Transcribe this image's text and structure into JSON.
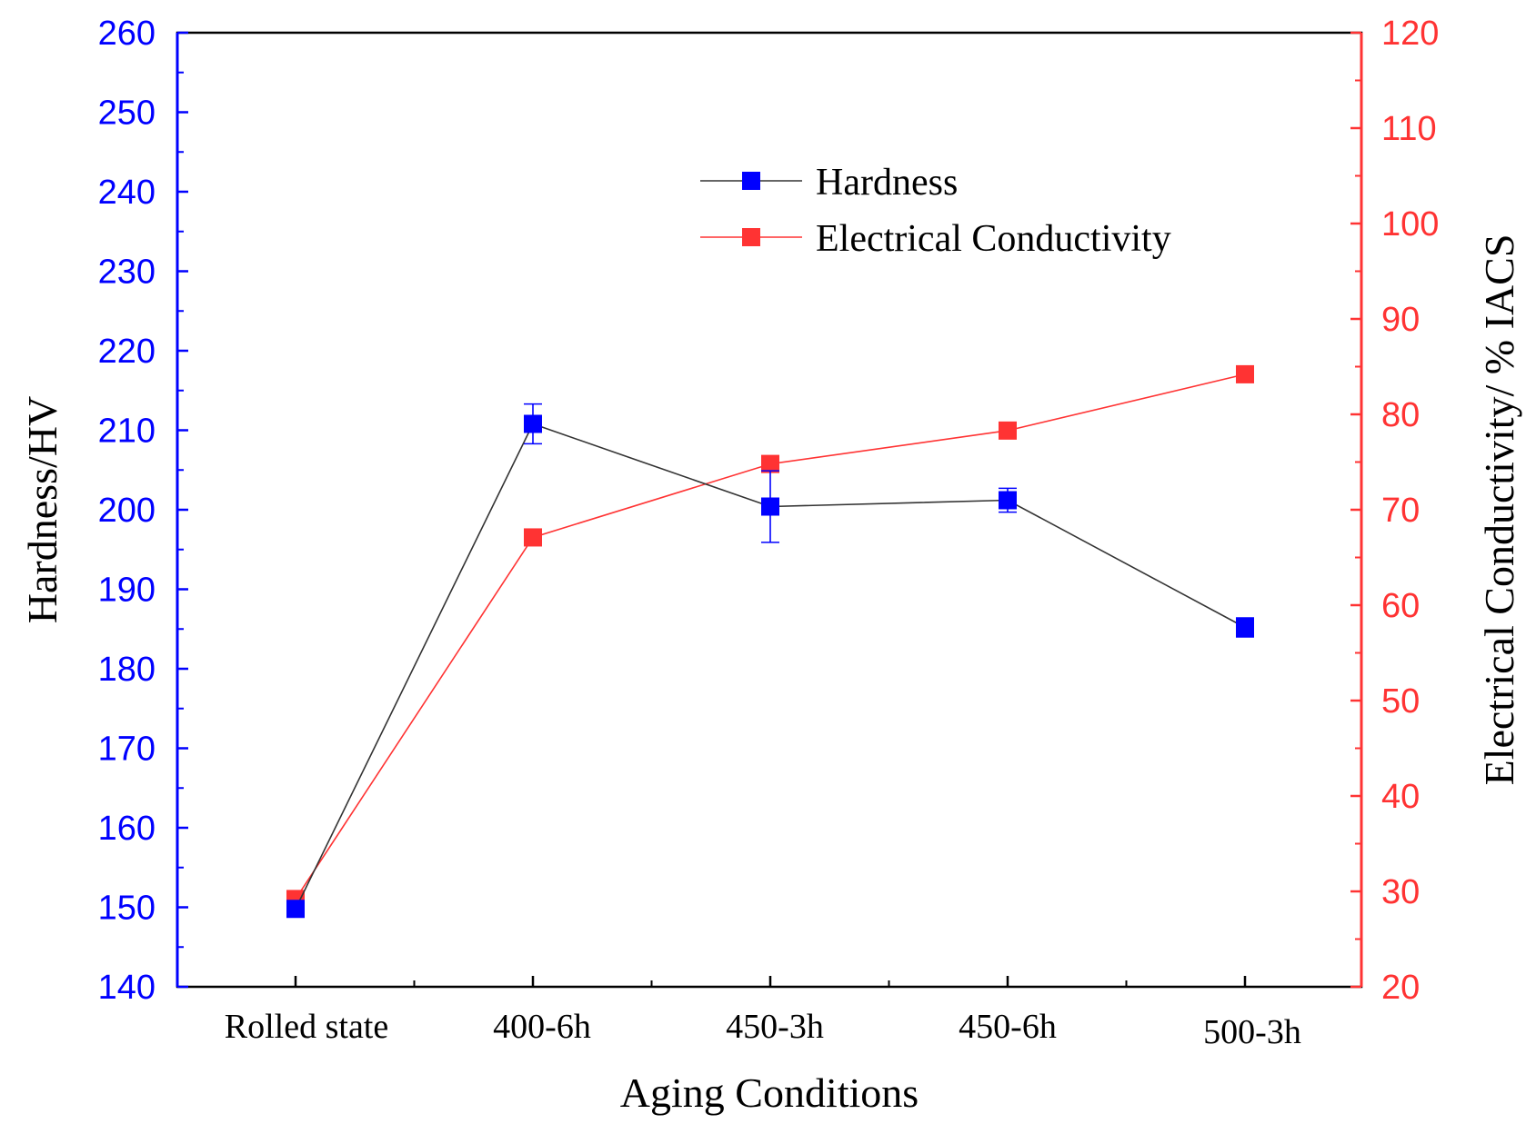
{
  "chart_data": {
    "type": "line",
    "categories": [
      "Rolled state",
      "400-6h",
      "450-3h",
      "450-6h",
      "500-3h"
    ],
    "xlabel": "Aging Conditions",
    "ylabel_left": "Hardness/HV",
    "ylabel_right": "Electrical Conductivity/ % IACS",
    "ylim_left": [
      140,
      260
    ],
    "ylim_right": [
      20,
      120
    ],
    "yticks_left": [
      140,
      150,
      160,
      170,
      180,
      190,
      200,
      210,
      220,
      230,
      240,
      250,
      260
    ],
    "yticks_right": [
      20,
      30,
      40,
      50,
      60,
      70,
      80,
      90,
      100,
      110,
      120
    ],
    "legend_position": "upper-center",
    "series": [
      {
        "name": "Hardness",
        "axis": "left",
        "color": "#0000ff",
        "line_color": "#333333",
        "values": [
          149.8,
          210.8,
          200.4,
          201.2,
          185.2
        ],
        "errors": [
          0.5,
          2.5,
          4.5,
          1.5,
          1.2
        ]
      },
      {
        "name": "Electrical Conductivity",
        "axis": "right",
        "color": "#ff3333",
        "line_color": "#ff3333",
        "values": [
          29.2,
          67.1,
          74.8,
          78.3,
          84.2
        ],
        "errors": [
          0,
          0,
          0,
          0,
          0
        ]
      }
    ]
  }
}
